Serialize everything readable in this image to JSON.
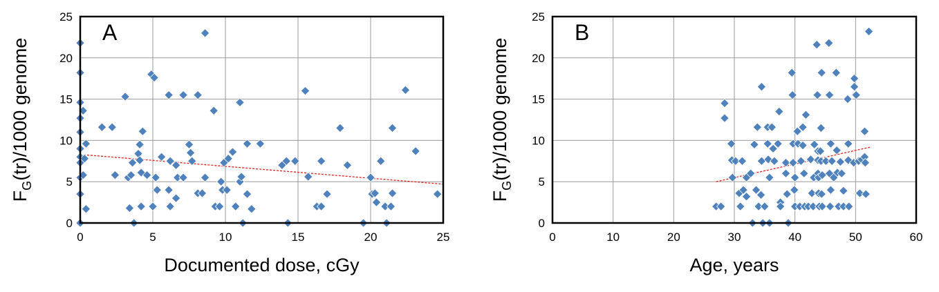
{
  "chart_data": [
    {
      "type": "scatter",
      "panel_label": "A",
      "xlabel": "Documented  dose, cGy",
      "ylabel_main": "F",
      "ylabel_sub": "G",
      "ylabel_rest": "(tr)/1000 genome",
      "xlim": [
        0,
        25
      ],
      "ylim": [
        0,
        25
      ],
      "xticks": [
        "0",
        "5",
        "10",
        "15",
        "20",
        "25"
      ],
      "yticks": [
        "0",
        "5",
        "10",
        "15",
        "20",
        "25"
      ],
      "grid": true,
      "trendline": {
        "x": [
          0,
          25
        ],
        "y": [
          8.3,
          4.7
        ]
      },
      "colors": {
        "marker": "#4f81bd",
        "trendline": "#e0201b"
      },
      "points": [
        [
          0,
          21.8
        ],
        [
          0,
          18.2
        ],
        [
          0,
          14.6
        ],
        [
          0,
          12.7
        ],
        [
          0,
          11.0
        ],
        [
          0,
          9.0
        ],
        [
          0,
          8.0
        ],
        [
          0,
          7.3
        ],
        [
          0,
          5.5
        ],
        [
          0,
          3.5
        ],
        [
          0,
          0
        ],
        [
          0.2,
          13.6
        ],
        [
          0.2,
          5.8
        ],
        [
          0.3,
          7.8
        ],
        [
          0.4,
          9.6
        ],
        [
          0.4,
          1.7
        ],
        [
          1.5,
          11.6
        ],
        [
          2.2,
          11.6
        ],
        [
          2.4,
          5.8
        ],
        [
          3.1,
          15.3
        ],
        [
          3.3,
          5.5
        ],
        [
          3.4,
          1.8
        ],
        [
          3.5,
          5.8
        ],
        [
          3.6,
          7.3
        ],
        [
          3.7,
          0
        ],
        [
          4.0,
          8.4
        ],
        [
          4.1,
          9.5
        ],
        [
          4.1,
          7.6
        ],
        [
          4.2,
          6.1
        ],
        [
          4.2,
          2.0
        ],
        [
          4.3,
          11.1
        ],
        [
          4.6,
          5.8
        ],
        [
          4.9,
          18.0
        ],
        [
          5.0,
          2.0
        ],
        [
          5.1,
          17.6
        ],
        [
          5.2,
          5.5
        ],
        [
          5.3,
          4.0
        ],
        [
          5.6,
          8.0
        ],
        [
          6.1,
          15.5
        ],
        [
          6.1,
          4.0
        ],
        [
          6.2,
          7.5
        ],
        [
          6.2,
          2.0
        ],
        [
          6.6,
          7.0
        ],
        [
          6.6,
          3.0
        ],
        [
          6.7,
          5.5
        ],
        [
          7.1,
          15.5
        ],
        [
          7.1,
          5.5
        ],
        [
          7.5,
          9.5
        ],
        [
          7.6,
          8.5
        ],
        [
          7.7,
          7.5
        ],
        [
          8.1,
          15.5
        ],
        [
          8.1,
          3.6
        ],
        [
          8.4,
          3.6
        ],
        [
          8.6,
          23.0
        ],
        [
          8.6,
          5.5
        ],
        [
          9.2,
          13.6
        ],
        [
          9.3,
          2.0
        ],
        [
          9.6,
          2.0
        ],
        [
          9.7,
          5.0
        ],
        [
          9.8,
          4.0
        ],
        [
          9.9,
          7.3
        ],
        [
          10.1,
          4.0
        ],
        [
          10.2,
          7.8
        ],
        [
          10.5,
          8.6
        ],
        [
          10.7,
          2.0
        ],
        [
          11.0,
          14.6
        ],
        [
          11.0,
          5.0
        ],
        [
          11.1,
          5.6
        ],
        [
          11.2,
          0
        ],
        [
          11.5,
          9.6
        ],
        [
          11.5,
          3.5
        ],
        [
          11.8,
          1.7
        ],
        [
          12.4,
          9.6
        ],
        [
          13.9,
          7.0
        ],
        [
          14.2,
          7.5
        ],
        [
          14.3,
          0
        ],
        [
          14.8,
          7.5
        ],
        [
          15.5,
          16.0
        ],
        [
          15.7,
          5.6
        ],
        [
          16.3,
          2.0
        ],
        [
          16.6,
          7.5
        ],
        [
          16.6,
          2.0
        ],
        [
          17.0,
          3.5
        ],
        [
          17.9,
          11.5
        ],
        [
          18.4,
          7.0
        ],
        [
          19.5,
          0
        ],
        [
          20.0,
          5.5
        ],
        [
          20.1,
          3.5
        ],
        [
          20.3,
          3.6
        ],
        [
          20.4,
          2.5
        ],
        [
          20.7,
          7.5
        ],
        [
          21.0,
          2.0
        ],
        [
          21.1,
          0
        ],
        [
          21.4,
          2.0
        ],
        [
          21.5,
          3.6
        ],
        [
          21.5,
          11.5
        ],
        [
          22.4,
          16.1
        ],
        [
          23.1,
          8.7
        ],
        [
          24.6,
          3.5
        ]
      ]
    },
    {
      "type": "scatter",
      "panel_label": "B",
      "xlabel": "Age, years",
      "ylabel_main": "F",
      "ylabel_sub": "G",
      "ylabel_rest": "(tr)/1000 genome",
      "xlim": [
        0,
        60
      ],
      "ylim": [
        0,
        25
      ],
      "xticks": [
        "0",
        "10",
        "20",
        "30",
        "40",
        "50",
        "60"
      ],
      "yticks": [
        "0",
        "5",
        "10",
        "15",
        "20",
        "25"
      ],
      "grid": true,
      "trendline": {
        "x": [
          27,
          52.5
        ],
        "y": [
          5.0,
          9.2
        ]
      },
      "colors": {
        "marker": "#4f81bd",
        "trendline": "#e0201b"
      },
      "points": [
        [
          27,
          2.0
        ],
        [
          27.8,
          2.0
        ],
        [
          28.4,
          14.5
        ],
        [
          28.4,
          12.7
        ],
        [
          29.5,
          9.6
        ],
        [
          29.6,
          7.6
        ],
        [
          29.7,
          5.5
        ],
        [
          30.2,
          7.5
        ],
        [
          30.8,
          3.6
        ],
        [
          31,
          2.0
        ],
        [
          31.3,
          7.5
        ],
        [
          31.5,
          4.0
        ],
        [
          32,
          3.2
        ],
        [
          32,
          5.5
        ],
        [
          32.7,
          6.0
        ],
        [
          33,
          0
        ],
        [
          33.3,
          9.5
        ],
        [
          33.6,
          4.0
        ],
        [
          33.8,
          11.6
        ],
        [
          34,
          2.0
        ],
        [
          34.4,
          3.4
        ],
        [
          34.5,
          16.5
        ],
        [
          34.5,
          7.5
        ],
        [
          34.7,
          0
        ],
        [
          35,
          2.0
        ],
        [
          35.5,
          11.6
        ],
        [
          35.5,
          9.6
        ],
        [
          35.6,
          7.7
        ],
        [
          35.8,
          5.5
        ],
        [
          35.8,
          0
        ],
        [
          36.2,
          11.6
        ],
        [
          36.4,
          9.0
        ],
        [
          36.6,
          7.5
        ],
        [
          37.2,
          9.6
        ],
        [
          37.4,
          13.5
        ],
        [
          37.6,
          2.5
        ],
        [
          37.6,
          2.0
        ],
        [
          38.5,
          7.3
        ],
        [
          38.5,
          6.0
        ],
        [
          38.7,
          3.5
        ],
        [
          38.9,
          0
        ],
        [
          39.5,
          18.2
        ],
        [
          39.6,
          15.5
        ],
        [
          39.7,
          9.6
        ],
        [
          39.7,
          7.3
        ],
        [
          39.9,
          4.0
        ],
        [
          40,
          5.5
        ],
        [
          40,
          2.0
        ],
        [
          40.4,
          11.1
        ],
        [
          40.5,
          9.6
        ],
        [
          40.8,
          2.0
        ],
        [
          41,
          7.5
        ],
        [
          41.3,
          11.6
        ],
        [
          41.3,
          9.4
        ],
        [
          41.5,
          6.0
        ],
        [
          41.6,
          2.0
        ],
        [
          41.8,
          13.1
        ],
        [
          42.2,
          2.0
        ],
        [
          42.6,
          7.7
        ],
        [
          42.8,
          3.6
        ],
        [
          43,
          2.0
        ],
        [
          43.1,
          5.5
        ],
        [
          43.2,
          9.5
        ],
        [
          43.6,
          21.6
        ],
        [
          43.7,
          15.5
        ],
        [
          43.8,
          8.7
        ],
        [
          43.8,
          7.6
        ],
        [
          43.8,
          6.0
        ],
        [
          43.9,
          5.5
        ],
        [
          43.9,
          3.6
        ],
        [
          44,
          2.0
        ],
        [
          44.2,
          8.7
        ],
        [
          44.3,
          11.5
        ],
        [
          44.3,
          7.5
        ],
        [
          44.4,
          18.2
        ],
        [
          44.4,
          3.5
        ],
        [
          44.5,
          5.8
        ],
        [
          44.5,
          2.0
        ],
        [
          45.1,
          7.5
        ],
        [
          45.6,
          21.8
        ],
        [
          45.7,
          15.5
        ],
        [
          45.7,
          6.0
        ],
        [
          45.8,
          2.0
        ],
        [
          45.9,
          9.6
        ],
        [
          45.9,
          4.0
        ],
        [
          46.1,
          7.5
        ],
        [
          46.4,
          5.5
        ],
        [
          46.8,
          18.2
        ],
        [
          46.9,
          8.8
        ],
        [
          47,
          6.1
        ],
        [
          47.2,
          2.0
        ],
        [
          47.5,
          7.4
        ],
        [
          47.7,
          6.0
        ],
        [
          48,
          3.9
        ],
        [
          48,
          2.0
        ],
        [
          48.7,
          15.0
        ],
        [
          48.8,
          9.6
        ],
        [
          48.8,
          7.6
        ],
        [
          48.9,
          2.0
        ],
        [
          49.7,
          7.3
        ],
        [
          49.8,
          17.5
        ],
        [
          49.8,
          16.5
        ],
        [
          50.1,
          15.5
        ],
        [
          50.5,
          7.5
        ],
        [
          50.7,
          3.6
        ],
        [
          51,
          7.7
        ],
        [
          51.5,
          11.1
        ],
        [
          51.5,
          8.0
        ],
        [
          51.6,
          7.3
        ],
        [
          51.7,
          3.5
        ],
        [
          52.2,
          23.2
        ]
      ]
    }
  ]
}
